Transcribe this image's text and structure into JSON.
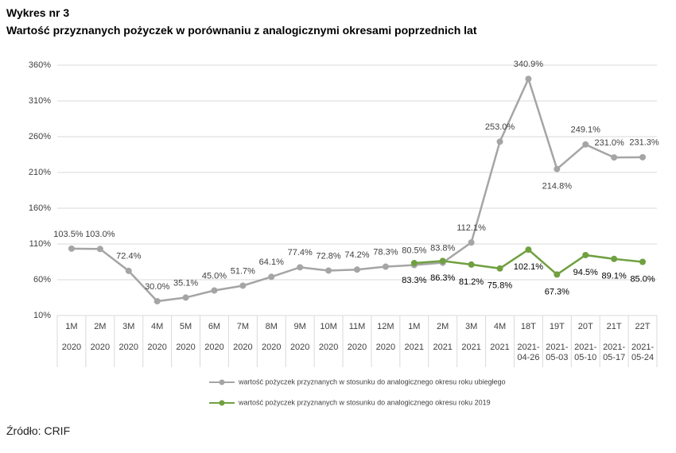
{
  "chart_data": {
    "type": "line",
    "title": "Wykres nr 3",
    "subtitle": "Wartość przyznanych pożyczek w porównaniu z analogicznymi okresami poprzednich lat",
    "source": "Źródło: CRIF",
    "categories": [
      "1M",
      "2M",
      "3M",
      "4M",
      "5M",
      "6M",
      "7M",
      "8M",
      "9M",
      "10M",
      "11M",
      "12M",
      "1M",
      "2M",
      "3M",
      "4M",
      "18T",
      "19T",
      "20T",
      "21T",
      "22T"
    ],
    "category_groups": [
      "2020",
      "2020",
      "2020",
      "2020",
      "2020",
      "2020",
      "2020",
      "2020",
      "2020",
      "2020",
      "2020",
      "2020",
      "2021",
      "2021",
      "2021",
      "2021",
      "2021-04-26",
      "2021-05-03",
      "2021-05-10",
      "2021-05-17",
      "2021-05-24"
    ],
    "series": [
      {
        "name": "wartość pożyczek przyznanych w stosunku do analogicznego okresu roku ubiegłego",
        "color": "#a5a5a5",
        "values": [
          103.5,
          103.0,
          72.4,
          30.0,
          35.1,
          45.0,
          51.7,
          64.1,
          77.4,
          72.8,
          74.2,
          78.3,
          80.5,
          83.8,
          112.1,
          253.0,
          340.9,
          214.8,
          249.1,
          231.0,
          231.3
        ],
        "value_labels": [
          "103.5%",
          "103.0%",
          "72.4%",
          "30.0%",
          "35.1%",
          "45.0%",
          "51.7%",
          "64.1%",
          "77.4%",
          "72.8%",
          "74.2%",
          "78.3%",
          "80.5%",
          "83.8%",
          "112.1%",
          "253.0%",
          "340.9%",
          "214.8%",
          "249.1%",
          "231.0%",
          "231.3%"
        ]
      },
      {
        "name": "wartość pożyczek przyznanych w stosunku do analogicznego okresu roku 2019",
        "color": "#70a040",
        "values": [
          null,
          null,
          null,
          null,
          null,
          null,
          null,
          null,
          null,
          null,
          null,
          null,
          83.3,
          86.3,
          81.2,
          75.8,
          102.1,
          67.3,
          94.5,
          89.1,
          85.0
        ],
        "value_labels": [
          null,
          null,
          null,
          null,
          null,
          null,
          null,
          null,
          null,
          null,
          null,
          null,
          "83.3%",
          "86.3%",
          "81.2%",
          "75.8%",
          "102.1%",
          "67.3%",
          "94.5%",
          "89.1%",
          "85.0%"
        ]
      }
    ],
    "ylim": [
      10,
      360
    ],
    "yticks": [
      {
        "value": 10,
        "label": "10%"
      },
      {
        "value": 60,
        "label": "60%"
      },
      {
        "value": 110,
        "label": "110%"
      },
      {
        "value": 160,
        "label": "160%"
      },
      {
        "value": 210,
        "label": "210%"
      },
      {
        "value": 260,
        "label": "260%"
      },
      {
        "value": 310,
        "label": "310%"
      },
      {
        "value": 360,
        "label": "360%"
      }
    ],
    "grid": true,
    "legend": "bottom"
  }
}
